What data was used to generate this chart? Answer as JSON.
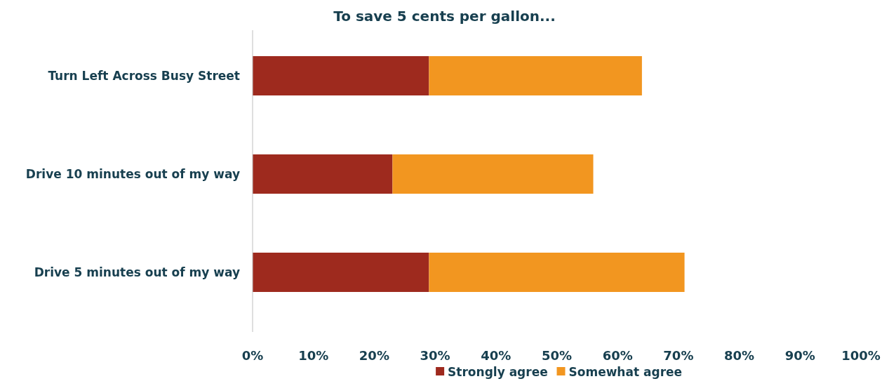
{
  "chart_data": {
    "type": "bar",
    "orientation": "horizontal",
    "stacked": true,
    "title": "To save 5 cents per gallon...",
    "categories": [
      "Turn Left Across Busy Street",
      "Drive 10 minutes out of my way",
      "Drive 5 minutes out of my way"
    ],
    "series": [
      {
        "name": "Strongly agree",
        "color": "#9e2a1e",
        "values": [
          29,
          23,
          29
        ]
      },
      {
        "name": "Somewhat agree",
        "color": "#f29620",
        "values": [
          35,
          33,
          42
        ]
      }
    ],
    "xlim": [
      0,
      100
    ],
    "xticks": [
      {
        "value": 0,
        "label": "0%"
      },
      {
        "value": 10,
        "label": "10%"
      },
      {
        "value": 20,
        "label": "20%"
      },
      {
        "value": 30,
        "label": "30%"
      },
      {
        "value": 40,
        "label": "40%"
      },
      {
        "value": 50,
        "label": "50%"
      },
      {
        "value": 60,
        "label": "60%"
      },
      {
        "value": 70,
        "label": "70%"
      },
      {
        "value": 80,
        "label": "80%"
      },
      {
        "value": 90,
        "label": "90%"
      },
      {
        "value": 100,
        "label": "100%"
      }
    ],
    "grid": false,
    "legend": "bottom"
  }
}
